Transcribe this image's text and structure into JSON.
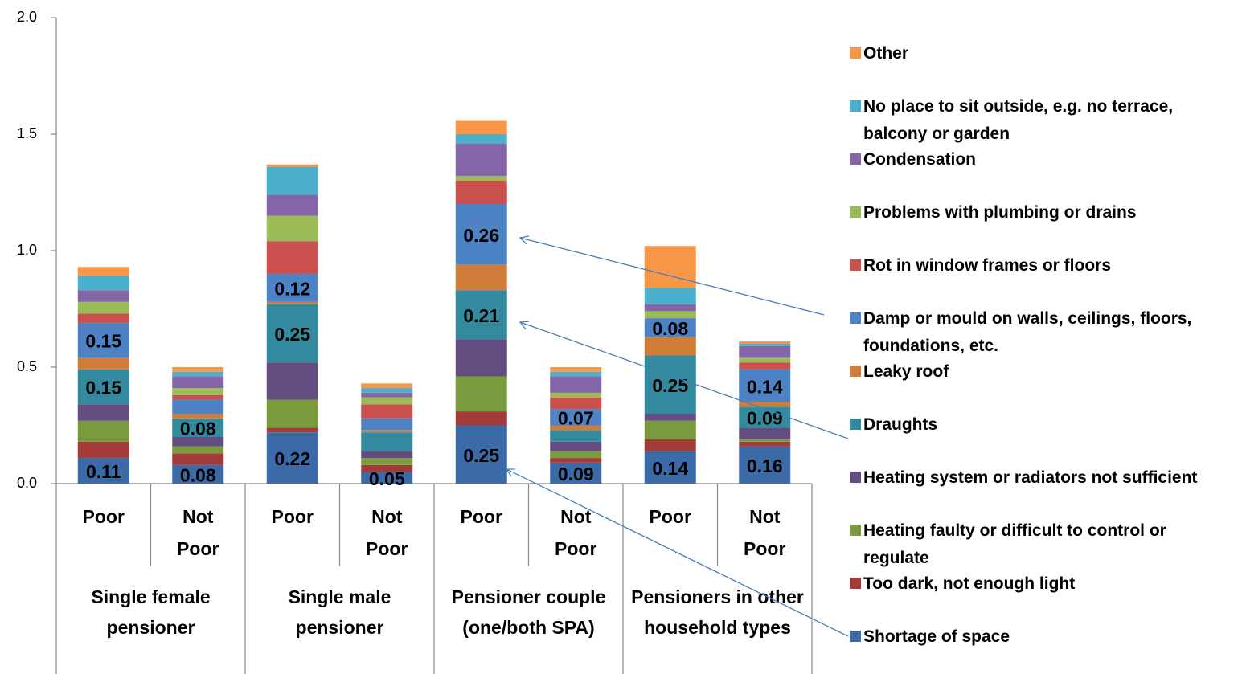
{
  "chart_data": {
    "type": "stacked_bar",
    "categories": [
      "Poor",
      "Not Poor",
      "Poor",
      "Not Poor",
      "Poor",
      "Not Poor",
      "Poor",
      "Not Poor"
    ],
    "groups": [
      "Single female pensioner",
      "Single male pensioner",
      "Pensioner couple (one/both SPA)",
      "Pensioners in other household types"
    ],
    "ylim": [
      0,
      2
    ],
    "yticks": [
      {
        "value": 0,
        "label": "0.0"
      },
      {
        "value": 0.5,
        "label": "0.5"
      },
      {
        "value": 1,
        "label": "1.0"
      },
      {
        "value": 1.5,
        "label": "1.5"
      },
      {
        "value": 2,
        "label": "2.0"
      }
    ],
    "legend": "right",
    "series": [
      {
        "name": "Shortage of space",
        "color": "#3c6aa6",
        "values": [
          0.11,
          0.08,
          0.22,
          0.05,
          0.25,
          0.09,
          0.14,
          0.16
        ],
        "value_labels": [
          "0.11",
          "0.08",
          "0.22",
          "0.05",
          "0.25",
          "0.09",
          "0.14",
          "0.16"
        ]
      },
      {
        "name": "Too dark, not enough light",
        "color": "#a33b38",
        "values": [
          0.07,
          0.05,
          0.02,
          0.03,
          0.06,
          0.02,
          0.05,
          0.02
        ]
      },
      {
        "name": "Heating faulty or difficult to control or regulate",
        "color": "#7a9a3e",
        "values": [
          0.09,
          0.03,
          0.12,
          0.03,
          0.15,
          0.03,
          0.08,
          0.01
        ]
      },
      {
        "name": "Heating system or radiators not sufficient",
        "color": "#634c80",
        "values": [
          0.07,
          0.04,
          0.16,
          0.03,
          0.16,
          0.04,
          0.03,
          0.05
        ]
      },
      {
        "name": "Draughts",
        "color": "#338a9e",
        "values": [
          0.15,
          0.08,
          0.25,
          0.08,
          0.21,
          0.05,
          0.25,
          0.09
        ],
        "value_labels": [
          "0.15",
          "0.08",
          "0.25",
          null,
          "0.21",
          null,
          "0.25",
          "0.09"
        ]
      },
      {
        "name": "Leaky roof",
        "color": "#d07d3a",
        "values": [
          0.05,
          0.02,
          0.01,
          0.01,
          0.11,
          0.02,
          0.08,
          0.02
        ]
      },
      {
        "name": "Damp or mould on walls, ceilings, floors, foundations, etc.",
        "color": "#4d82c4",
        "values": [
          0.15,
          0.06,
          0.12,
          0.05,
          0.26,
          0.07,
          0.08,
          0.14
        ],
        "value_labels": [
          "0.15",
          null,
          "0.12",
          null,
          "0.26",
          "0.07",
          "0.08",
          "0.14"
        ]
      },
      {
        "name": "Rot in window frames or floors",
        "color": "#c9504d",
        "values": [
          0.04,
          0.02,
          0.14,
          0.06,
          0.1,
          0.05,
          0,
          0.03
        ]
      },
      {
        "name": "Problems with plumbing or drains",
        "color": "#9bbb59",
        "values": [
          0.05,
          0.03,
          0.11,
          0.03,
          0.02,
          0.02,
          0.03,
          0.02
        ]
      },
      {
        "name": "Condensation",
        "color": "#8466a8",
        "values": [
          0.05,
          0.05,
          0.09,
          0.02,
          0.14,
          0.07,
          0.03,
          0.05
        ]
      },
      {
        "name": "No place to sit outside, e.g. no terrace, balcony or garden",
        "color": "#4bb0cc",
        "values": [
          0.06,
          0.02,
          0.12,
          0.02,
          0.04,
          0.02,
          0.07,
          0.01
        ]
      },
      {
        "name": "Other",
        "color": "#f79646",
        "values": [
          0.04,
          0.02,
          0.01,
          0.02,
          0.06,
          0.02,
          0.18,
          0.01
        ]
      }
    ]
  }
}
